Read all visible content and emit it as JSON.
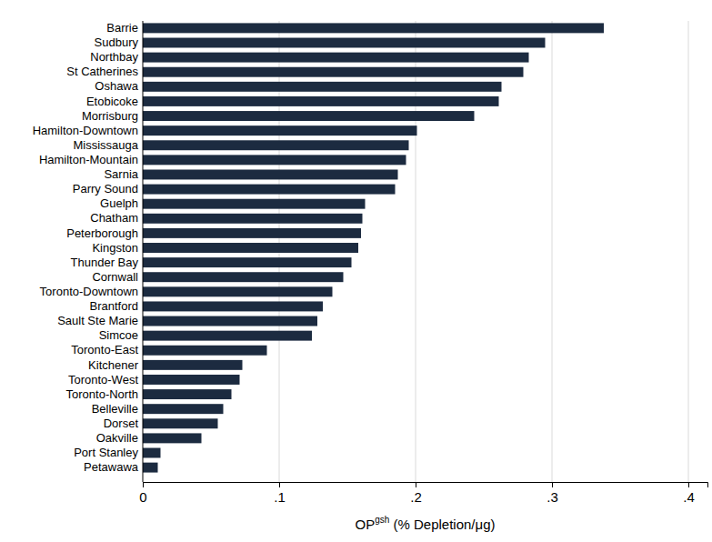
{
  "chart_data": {
    "type": "bar",
    "orientation": "horizontal",
    "categories": [
      "Barrie",
      "Sudbury",
      "Northbay",
      "St Catherines",
      "Oshawa",
      "Etobicoke",
      "Morrisburg",
      "Hamilton-Downtown",
      "Mississauga",
      "Hamilton-Mountain",
      "Sarnia",
      "Parry Sound",
      "Guelph",
      "Chatham",
      "Peterborough",
      "Kingston",
      "Thunder Bay",
      "Cornwall",
      "Toronto-Downtown",
      "Brantford",
      "Sault Ste Marie",
      "Simcoe",
      "Toronto-East",
      "Kitchener",
      "Toronto-West",
      "Toronto-North",
      "Belleville",
      "Dorset",
      "Oakville",
      "Port Stanley",
      "Petawawa"
    ],
    "values": [
      0.338,
      0.295,
      0.283,
      0.279,
      0.263,
      0.261,
      0.243,
      0.201,
      0.195,
      0.193,
      0.187,
      0.185,
      0.163,
      0.161,
      0.16,
      0.158,
      0.153,
      0.147,
      0.139,
      0.132,
      0.128,
      0.124,
      0.091,
      0.073,
      0.071,
      0.065,
      0.059,
      0.055,
      0.043,
      0.013,
      0.011
    ],
    "color": "#1c2b40",
    "x_label": [
      "OP",
      "gsh",
      " (% Depletion/μg)"
    ],
    "xlim": [
      0,
      0.414
    ],
    "xticks": [
      0,
      {
        "value": 0.1,
        "label": ".1"
      },
      {
        "value": 0.2,
        "label": ".2"
      },
      {
        "value": 0.3,
        "label": ".3"
      },
      {
        "value": 0.4,
        "label": ".4"
      }
    ],
    "grid": true
  }
}
